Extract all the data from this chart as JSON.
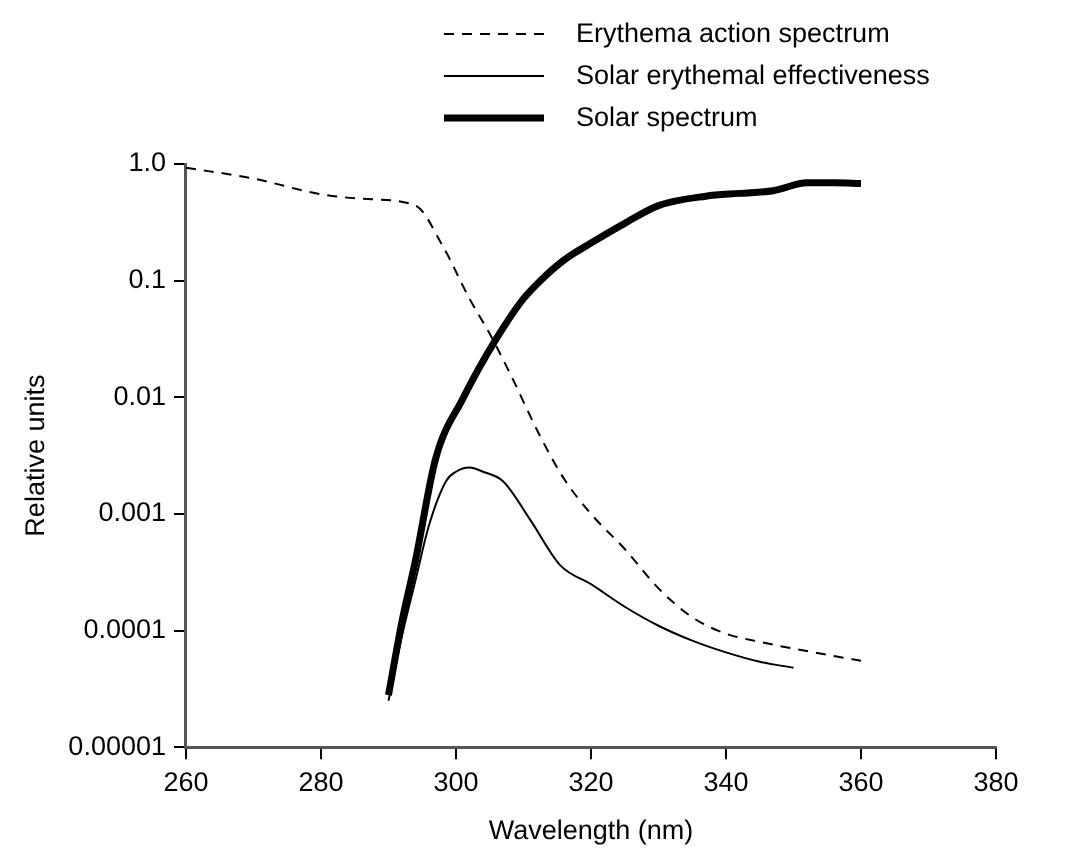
{
  "chart_data": {
    "type": "line",
    "xlabel": "Wavelength (nm)",
    "ylabel": "Relative units",
    "log": "y",
    "grid": false,
    "legend": "top right",
    "marker": "none",
    "xlim": [
      260,
      380
    ],
    "xticks": [
      260,
      280,
      300,
      320,
      340,
      360,
      380
    ],
    "ylim": [
      1e-05,
      1
    ],
    "yticks": [
      {
        "value": 1e-05,
        "label": "0.00001"
      },
      0.0001,
      0.001,
      0.01,
      0.1,
      {
        "value": 1,
        "label": "1.0"
      }
    ],
    "series": [
      {
        "name": "Erythema action spectrum",
        "color": "#000000",
        "line_style": "dashed",
        "x": [
          260,
          270,
          280,
          287,
          294,
          298,
          302,
          305,
          308,
          312.5,
          316,
          320,
          325,
          330,
          335,
          340,
          345,
          350,
          355,
          360
        ],
        "values": [
          0.93,
          0.75,
          0.55,
          0.5,
          0.44,
          0.2,
          0.07,
          0.035,
          0.016,
          0.0046,
          0.002,
          0.001,
          0.0005,
          0.00023,
          0.00013,
          9.4e-05,
          8e-05,
          7e-05,
          6.2e-05,
          5.5e-05
        ]
      },
      {
        "name": "Solar erythemal effectiveness",
        "color": "#000000",
        "line_style": "solid",
        "x": [
          290,
          292,
          294,
          296,
          298.5,
          300,
          302,
          304,
          307,
          311,
          315.5,
          320,
          325,
          330,
          335,
          340,
          345,
          350
        ],
        "values": [
          2.5e-05,
          9e-05,
          0.00027,
          0.0008,
          0.0019,
          0.0023,
          0.0025,
          0.0023,
          0.0019,
          0.00089,
          0.00036,
          0.00025,
          0.00016,
          0.00011,
          8.2e-05,
          6.5e-05,
          5.4e-05,
          4.8e-05
        ]
      },
      {
        "name": "Solar spectrum",
        "color": "#000000",
        "line_style": "solid",
        "x": [
          290,
          292,
          294,
          297,
          301,
          306,
          310,
          312.5,
          316,
          320,
          325,
          330,
          337,
          342,
          347,
          352,
          356,
          360
        ],
        "values": [
          2.8e-05,
          0.00012,
          0.0004,
          0.003,
          0.0097,
          0.032,
          0.07,
          0.1,
          0.15,
          0.21,
          0.31,
          0.44,
          0.53,
          0.56,
          0.59,
          0.69,
          0.69,
          0.68
        ]
      }
    ]
  }
}
